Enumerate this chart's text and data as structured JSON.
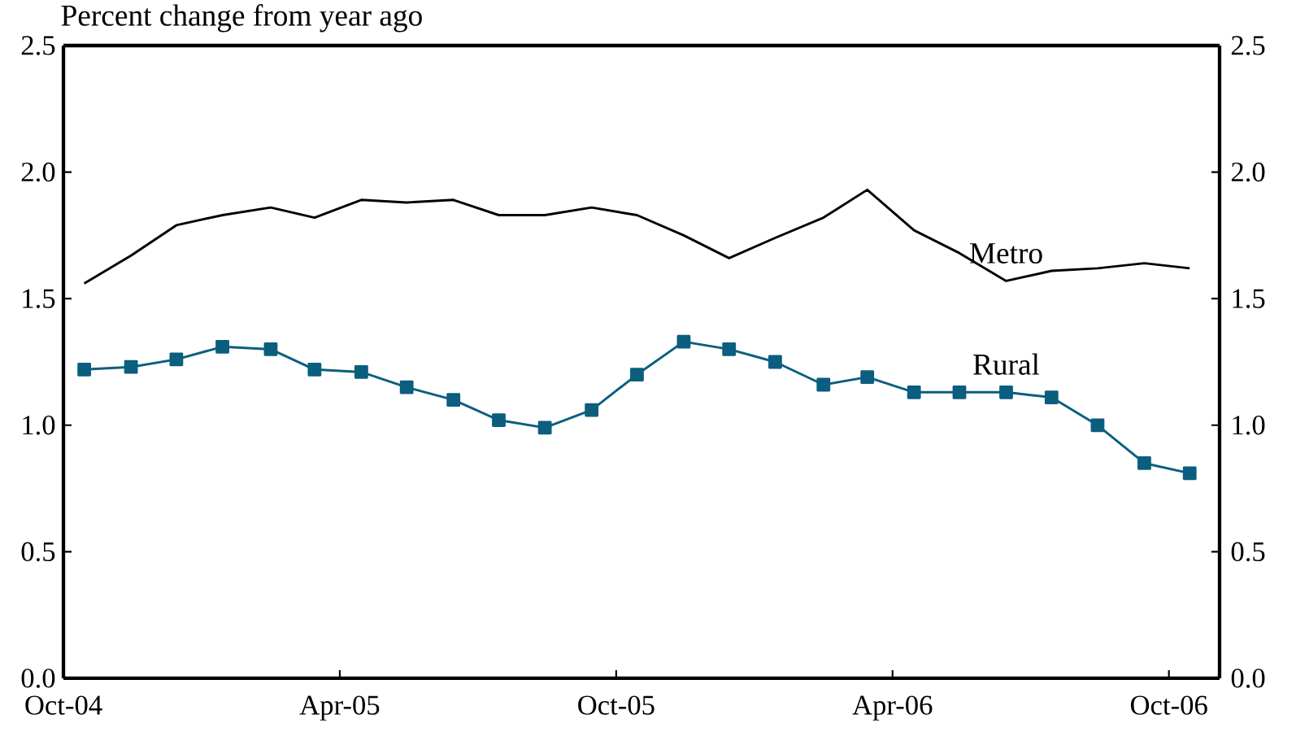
{
  "chart_data": {
    "type": "line",
    "annotations": [
      "Percent change from year ago"
    ],
    "x": [
      "2004-10-15",
      "2004-11-15",
      "2004-12-15",
      "2005-01-15",
      "2005-02-15",
      "2005-03-15",
      "2005-04-15",
      "2005-05-15",
      "2005-06-15",
      "2005-07-15",
      "2005-08-15",
      "2005-09-15",
      "2005-10-15",
      "2005-11-15",
      "2005-12-15",
      "2006-01-15",
      "2006-02-15",
      "2006-03-15",
      "2006-04-15",
      "2006-05-15",
      "2006-06-15",
      "2006-07-15",
      "2006-08-15",
      "2006-09-15",
      "2006-10-15"
    ],
    "series": [
      {
        "name": "Metro",
        "color": "#000000",
        "marker": "none",
        "values": [
          1.56,
          1.67,
          1.79,
          1.83,
          1.86,
          1.82,
          1.89,
          1.88,
          1.89,
          1.83,
          1.83,
          1.86,
          1.83,
          1.75,
          1.66,
          1.74,
          1.82,
          1.93,
          1.77,
          1.68,
          1.57,
          1.61,
          1.62,
          1.64,
          1.62
        ]
      },
      {
        "name": "Rural",
        "color": "#0b5e7e",
        "marker": "square",
        "values": [
          1.22,
          1.23,
          1.26,
          1.31,
          1.3,
          1.22,
          1.21,
          1.15,
          1.1,
          1.02,
          0.99,
          1.06,
          1.2,
          1.33,
          1.3,
          1.25,
          1.16,
          1.19,
          1.13,
          1.13,
          1.13,
          1.11,
          1.0,
          0.85,
          0.81
        ]
      }
    ],
    "xlim": [
      "2004-10-01",
      "2006-11-04"
    ],
    "xticks": [
      {
        "value": "2004-10-01",
        "label": "Oct-04"
      },
      {
        "value": "2005-04-01",
        "label": "Apr-05"
      },
      {
        "value": "2005-10-01",
        "label": "Oct-05"
      },
      {
        "value": "2006-04-01",
        "label": "Apr-06"
      },
      {
        "value": "2006-10-01",
        "label": "Oct-06"
      }
    ],
    "ylim": [
      0,
      2.5
    ],
    "yticks": [
      {
        "value": 0,
        "label": "0.0"
      },
      0.5,
      {
        "value": 1,
        "label": "1.0"
      },
      1.5,
      {
        "value": 2,
        "label": "2.0"
      },
      2.5
    ],
    "y2lim": [
      0,
      2.5
    ],
    "y2ticks": [
      {
        "value": 0,
        "label": "0.0"
      },
      0.5,
      {
        "value": 1,
        "label": "1.0"
      },
      1.5,
      {
        "value": 2,
        "label": "2.0"
      },
      2.5
    ]
  }
}
